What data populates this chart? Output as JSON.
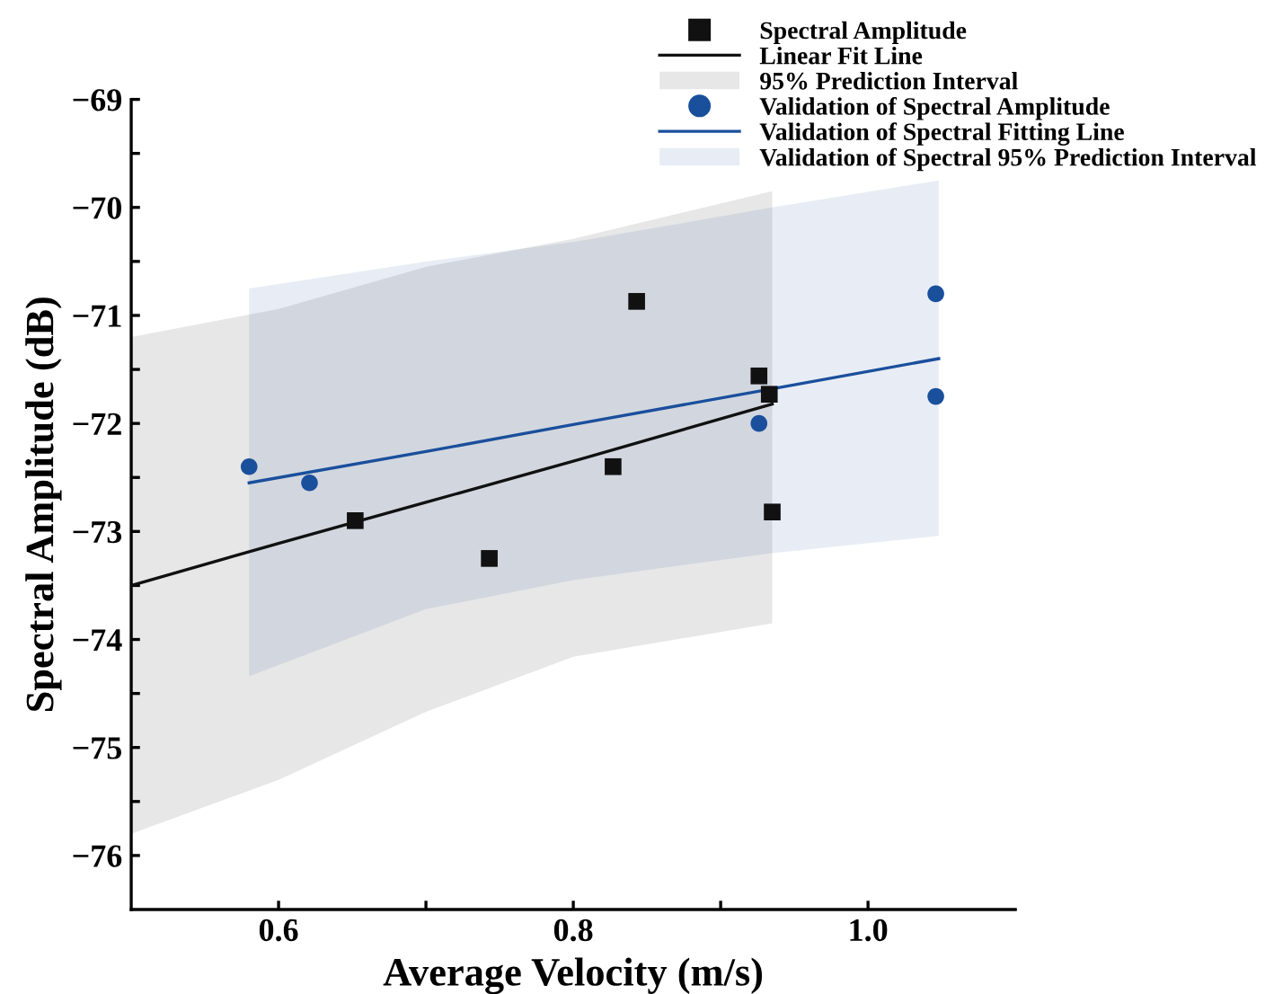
{
  "chart_data": {
    "type": "scatter",
    "xlabel": "Average Velocity (m/s)",
    "ylabel": "Spectral Amplitude (dB)",
    "annotations": [
      "95% Prediction Interval",
      "Validation of Spectral 95% Prediction Interval"
    ],
    "xlim": [
      0.5,
      1.1
    ],
    "xticks": [
      {
        "value": 0.6,
        "label": "0.6"
      },
      {
        "value": 0.7,
        "label": null
      },
      {
        "value": 0.8,
        "label": "0.8"
      },
      {
        "value": 0.9,
        "label": null
      },
      {
        "value": 1.0,
        "label": "1.0"
      }
    ],
    "ylim": [
      -76.5,
      -69
    ],
    "yticks": [
      -69,
      {
        "value": -69.5,
        "label": null
      },
      -70,
      {
        "value": -70.5,
        "label": null
      },
      -71,
      {
        "value": -71.5,
        "label": null
      },
      -72,
      {
        "value": -72.5,
        "label": null
      },
      -73,
      {
        "value": -73.5,
        "label": null
      },
      -74,
      {
        "value": -74.5,
        "label": null
      },
      -75,
      {
        "value": -75.5,
        "label": null
      },
      -76
    ],
    "grid": false,
    "legend": "top right",
    "series": [
      {
        "name": "Spectral Amplitude",
        "marker": "square",
        "color": "#111111",
        "x": [
          0.652,
          0.743,
          0.827,
          0.843,
          0.926,
          0.933,
          0.935
        ],
        "values": [
          -72.9,
          -73.25,
          -72.4,
          -70.87,
          -71.56,
          -71.73,
          -72.82
        ]
      },
      {
        "name": "Linear Fit Line",
        "type": "line",
        "line_style": "solid",
        "color": "#111111",
        "x": [
          0.5,
          0.6,
          0.7,
          0.8,
          0.935
        ],
        "values": [
          -73.5,
          -73.11,
          -72.73,
          -72.35,
          -71.82
        ],
        "lower": [
          -75.8,
          -75.3,
          -74.67,
          -74.16,
          -73.85
        ],
        "upper": [
          -71.2,
          -70.94,
          -70.55,
          -70.29,
          -69.85
        ]
      },
      {
        "name": "Validation of Spectral Amplitude",
        "marker": "circle",
        "color": "#1a4f9c",
        "x": [
          0.58,
          0.621,
          0.926,
          1.046,
          1.046
        ],
        "values": [
          -72.4,
          -72.55,
          -72.0,
          -70.8,
          -71.75
        ]
      },
      {
        "name": "Validation of Spectral Fitting Line",
        "type": "line",
        "line_style": "solid",
        "color": "#1a4f9c",
        "x": [
          0.58,
          0.7,
          0.8,
          0.935,
          1.048
        ],
        "values": [
          -72.55,
          -72.26,
          -72.01,
          -71.68,
          -71.4
        ],
        "lower": [
          -74.34,
          -73.72,
          -73.45,
          -73.2,
          -73.04
        ],
        "upper": [
          -70.75,
          -70.5,
          -70.32,
          -70.0,
          -69.75
        ]
      }
    ]
  }
}
